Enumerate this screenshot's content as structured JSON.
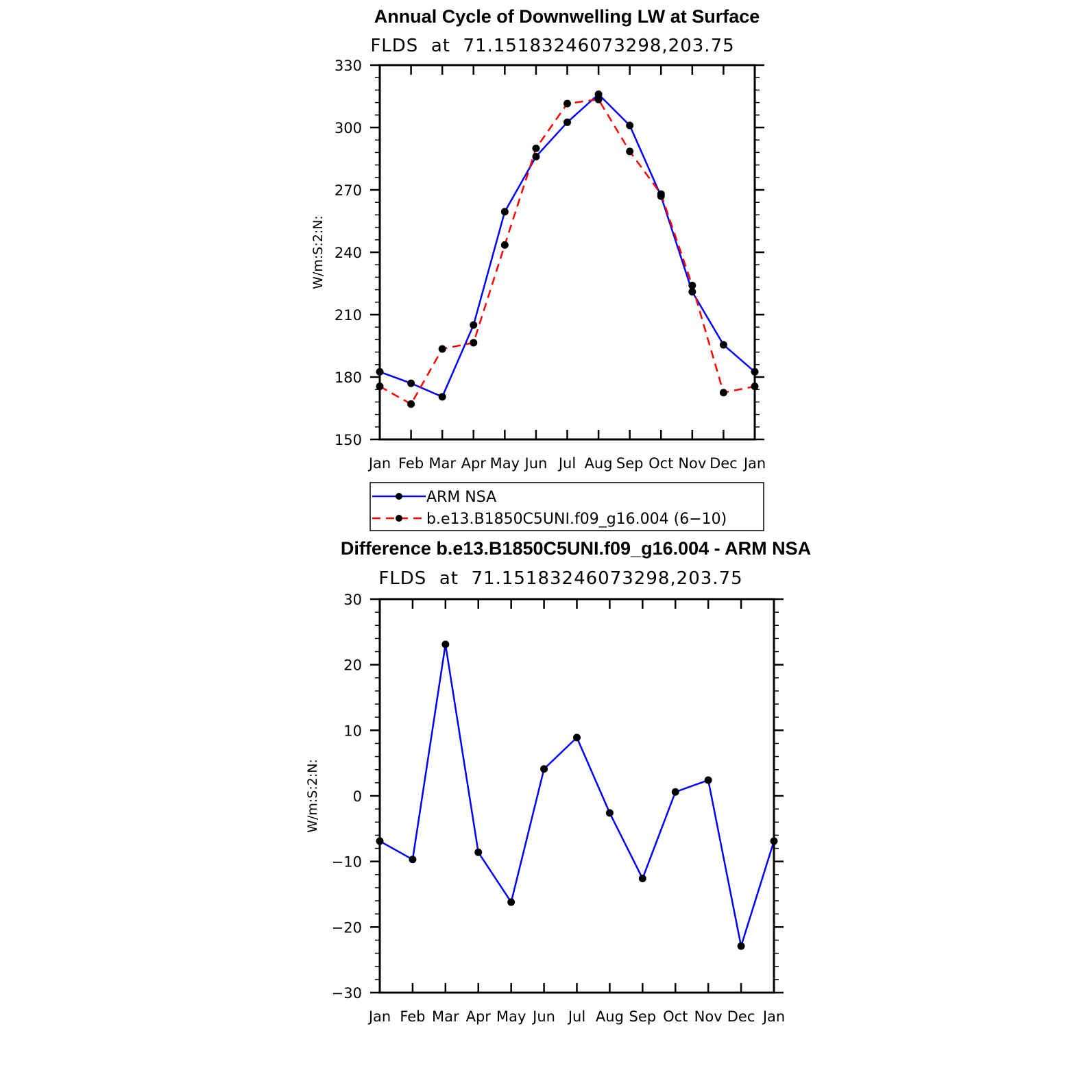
{
  "chart_data": [
    {
      "type": "line",
      "title": "Annual Cycle of Downwelling LW at Surface",
      "subtitle": "FLDS  at  71.15183246073298,203.75",
      "ylabel": "W/m:S:2:N:",
      "ylim": [
        150,
        330
      ],
      "yticks": [
        "150",
        "180",
        "210",
        "240",
        "270",
        "300",
        "330"
      ],
      "categories": [
        "Jan",
        "Feb",
        "Mar",
        "Apr",
        "May",
        "Jun",
        "Jul",
        "Aug",
        "Sep",
        "Oct",
        "Nov",
        "Dec",
        "Jan"
      ],
      "legend_position": "below",
      "series": [
        {
          "name": "ARM NSA",
          "color": "#0000ff",
          "dash": "solid",
          "values": [
            182.5,
            177,
            170.5,
            205,
            259.5,
            286,
            302.5,
            316,
            301,
            267,
            221,
            195.5,
            182.5
          ]
        },
        {
          "name": "b.e13.B1850C5UNI.f09_g16.004 (6−10)",
          "color": "#ff0000",
          "dash": "dashed",
          "values": [
            175.5,
            167,
            193.5,
            196.5,
            243.5,
            290,
            311.5,
            313.5,
            288.5,
            268,
            224,
            172.5,
            175.5
          ]
        }
      ]
    },
    {
      "type": "line",
      "title": "Difference b.e13.B1850C5UNI.f09_g16.004 - ARM NSA",
      "subtitle": "FLDS  at  71.15183246073298,203.75",
      "ylabel": "W/m:S:2:N:",
      "ylim": [
        -30,
        30
      ],
      "yticks": [
        "−30",
        "−20",
        "−10",
        "0",
        "10",
        "20",
        "30"
      ],
      "categories": [
        "Jan",
        "Feb",
        "Mar",
        "Apr",
        "May",
        "Jun",
        "Jul",
        "Aug",
        "Sep",
        "Oct",
        "Nov",
        "Dec",
        "Jan"
      ],
      "series": [
        {
          "color": "#0000ff",
          "dash": "solid",
          "values": [
            -6.9,
            -9.7,
            23.1,
            -8.6,
            -16.2,
            4.1,
            8.9,
            -2.6,
            -12.6,
            0.6,
            2.4,
            -22.9,
            -6.9
          ]
        }
      ]
    }
  ]
}
